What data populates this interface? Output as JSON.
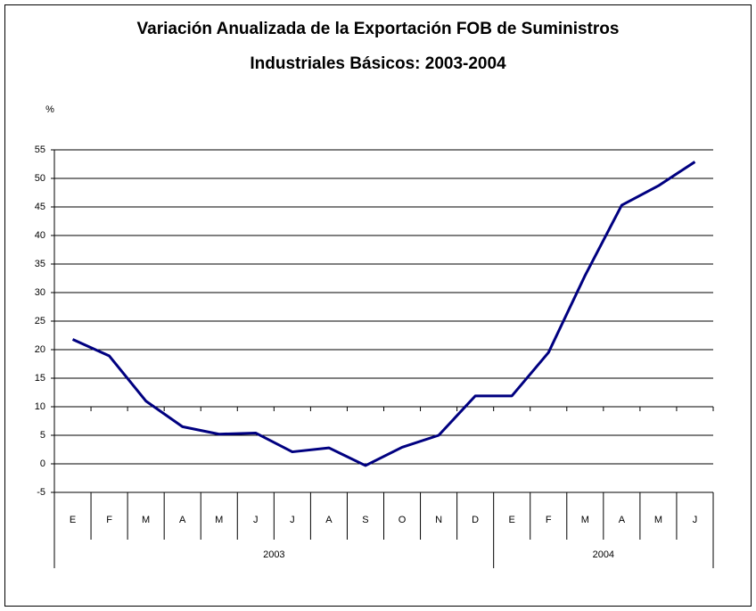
{
  "chart_data": {
    "type": "line",
    "title": [
      "Variación Anualizada de la Exportación FOB de Suministros",
      "Industriales Básicos: 2003-2004"
    ],
    "y_label": "%",
    "groups": [
      {
        "name": "2003",
        "categories": [
          "E",
          "F",
          "M",
          "A",
          "M",
          "J",
          "J",
          "A",
          "S",
          "O",
          "N",
          "D"
        ]
      },
      {
        "name": "2004",
        "categories": [
          "E",
          "F",
          "M",
          "A",
          "M",
          "J"
        ]
      }
    ],
    "values": [
      21.8,
      18.9,
      11,
      6.5,
      5.2,
      5.4,
      2.1,
      2.8,
      -0.3,
      2.9,
      5,
      11.9,
      11.9,
      19.5,
      33,
      45.3,
      48.7,
      52.9
    ],
    "color": "#000080",
    "ylim": [
      -5,
      55
    ],
    "yticks": [
      -5,
      0,
      5,
      10,
      15,
      20,
      25,
      30,
      35,
      40,
      45,
      50,
      55
    ],
    "x_axis_at": 10,
    "grid": true
  }
}
